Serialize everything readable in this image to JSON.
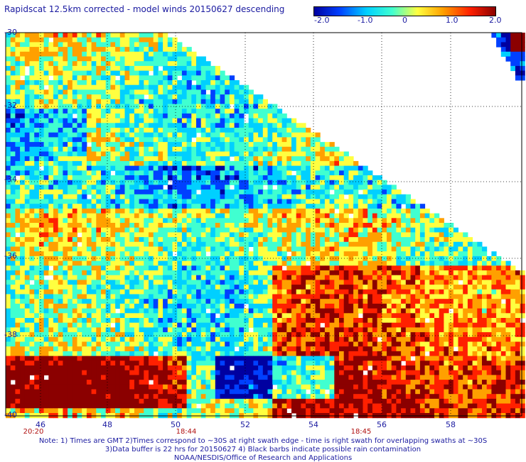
{
  "title": "Rapidscat 12.5km corrected - model winds 20150627 descending",
  "colorbar": {
    "labels": [
      "-2.0",
      "-1.0",
      "0",
      "1.0",
      "2.0"
    ],
    "colors": [
      "#0000a0",
      "#0040ff",
      "#00d0ff",
      "#40ffd0",
      "#ffff40",
      "#ffa000",
      "#ff2000",
      "#8b0000"
    ]
  },
  "map": {
    "lon_labels": [
      "46",
      "48",
      "50",
      "52",
      "54",
      "56",
      "58"
    ],
    "lat_labels": [
      "-30",
      "-32",
      "-34",
      "-36",
      "-38",
      "-40"
    ],
    "time_labels": [
      "20:20",
      "18:44",
      "18:45"
    ]
  },
  "notes": {
    "line1": "Note: 1) Times are GMT 2)Times correspond to ~30S at right swath edge - time is right swath for overlapping swaths at ~30S",
    "line2": "3)Data buffer is 22 hrs for 20150627 4) Black barbs indicate possible rain contamination",
    "line3": "NOAA/NESDIS/Office of Research and Applications"
  }
}
